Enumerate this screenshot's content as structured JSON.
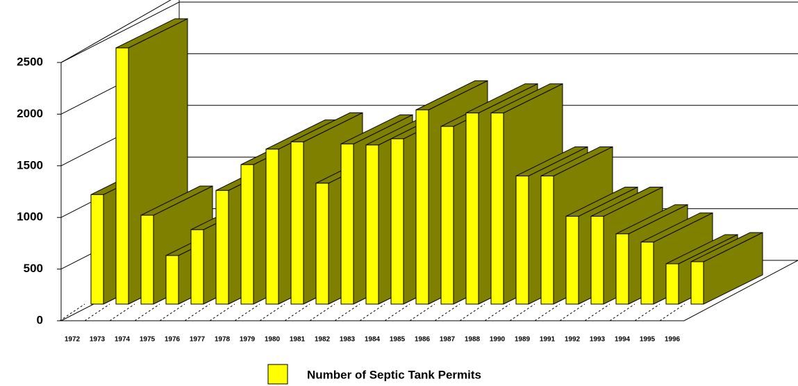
{
  "chart_data": {
    "type": "bar3d",
    "categories": [
      "1972",
      "1973",
      "1974",
      "1975",
      "1976",
      "1977",
      "1978",
      "1979",
      "1980",
      "1981",
      "1982",
      "1983",
      "1984",
      "1985",
      "1986",
      "1987",
      "1988",
      "1990",
      "1989",
      "1991",
      "1992",
      "1993",
      "1994",
      "1995",
      "1996"
    ],
    "series": [
      {
        "name": "Number of Septic Tank Permits",
        "color": "#ffff00",
        "values": [
          1060,
          2480,
          860,
          470,
          720,
          1100,
          1350,
          1500,
          1570,
          1170,
          1550,
          1540,
          1600,
          1880,
          1720,
          1850,
          1850,
          1240,
          1240,
          850,
          850,
          680,
          600,
          390,
          410
        ]
      }
    ],
    "ylim": [
      0,
      2500
    ],
    "yticks": [
      0,
      500,
      1000,
      1500,
      2000,
      2500
    ],
    "grid": true,
    "legend": "bottom"
  }
}
